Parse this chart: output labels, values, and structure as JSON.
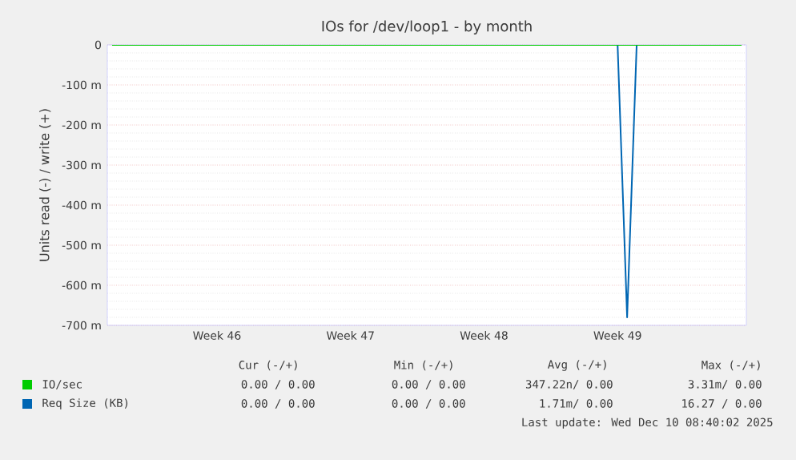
{
  "chart_data": {
    "type": "line",
    "title": "IOs for /dev/loop1 - by month",
    "ylabel": "Units read (-) / write (+)",
    "categories": [
      null,
      null,
      null,
      null,
      null,
      null,
      null,
      null,
      null,
      null,
      null,
      "Week 46",
      null,
      null,
      null,
      null,
      null,
      null,
      null,
      null,
      null,
      null,
      null,
      null,
      null,
      "Week 47",
      null,
      null,
      null,
      null,
      null,
      null,
      null,
      null,
      null,
      null,
      null,
      null,
      null,
      "Week 48",
      null,
      null,
      null,
      null,
      null,
      null,
      null,
      null,
      null,
      null,
      null,
      null,
      null,
      "Week 49",
      null,
      null,
      null,
      null,
      null,
      null,
      null,
      null,
      null,
      null,
      null,
      null,
      null
    ],
    "ylim": [
      -700,
      0
    ],
    "yticks": [
      {
        "value": -700,
        "label": "-700 m"
      },
      {
        "value": -600,
        "label": "-600 m"
      },
      {
        "value": -500,
        "label": "-500 m"
      },
      {
        "value": -400,
        "label": "-400 m"
      },
      {
        "value": -300,
        "label": "-300 m"
      },
      {
        "value": -200,
        "label": "-200 m"
      },
      {
        "value": -100,
        "label": "-100 m"
      },
      0
    ],
    "grid": "y",
    "legend": "bottom",
    "series": [
      {
        "name": "IO/sec",
        "color": "#00cc00",
        "values": [
          0,
          0,
          0,
          0,
          0,
          0,
          0,
          0,
          0,
          0,
          0,
          0,
          0,
          0,
          0,
          0,
          0,
          0,
          0,
          0,
          0,
          0,
          0,
          0,
          0,
          0,
          0,
          0,
          0,
          0,
          0,
          0,
          0,
          0,
          0,
          0,
          0,
          0,
          0,
          0,
          0,
          0,
          0,
          0,
          0,
          0,
          0,
          0,
          0,
          0,
          0,
          0,
          0,
          0,
          0,
          0,
          0,
          0,
          0,
          0,
          0,
          0,
          0,
          0,
          0,
          0,
          0
        ]
      },
      {
        "name": "Req Size (KB)",
        "color": "#0066b3",
        "values": [
          null,
          null,
          null,
          null,
          null,
          null,
          null,
          null,
          null,
          null,
          null,
          null,
          null,
          null,
          null,
          null,
          null,
          null,
          null,
          null,
          null,
          null,
          null,
          null,
          null,
          null,
          null,
          null,
          null,
          null,
          null,
          null,
          null,
          null,
          null,
          null,
          null,
          null,
          null,
          null,
          null,
          null,
          null,
          null,
          null,
          null,
          null,
          null,
          null,
          null,
          null,
          null,
          null,
          0,
          -680,
          0,
          null,
          null,
          null,
          null,
          null,
          null,
          null,
          null,
          null,
          null,
          null
        ]
      }
    ],
    "annotations": [
      "Cur (-/+)",
      "Min (-/+)",
      "Avg (-/+)",
      "Max (-/+)",
      "0.00 / 0.00",
      "0.00 / 0.00",
      "347.22n/ 0.00",
      "3.31m/ 0.00",
      "0.00 / 0.00",
      "0.00 / 0.00",
      "1.71m/ 0.00",
      "16.27 / 0.00",
      "Last update: Wed Dec 10 08:40:02 2025"
    ]
  }
}
